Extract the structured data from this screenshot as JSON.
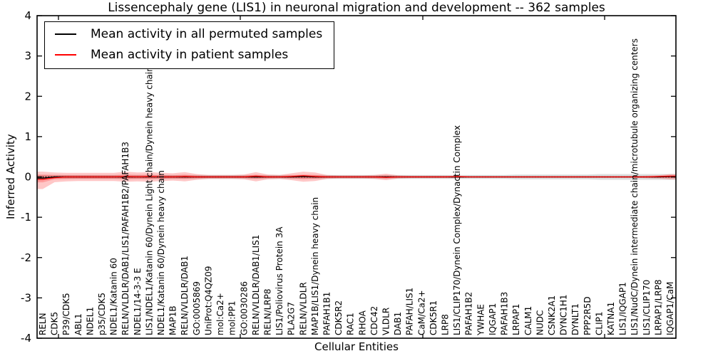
{
  "chart_data": {
    "type": "line",
    "title": "Lissencephaly gene (LIS1) in neuronal migration and development -- 362 samples",
    "xlabel": "Cellular Entities",
    "ylabel": "Inferred Activity",
    "ylim": [
      -4,
      4
    ],
    "yticks": [
      -4,
      -3,
      -2,
      -1,
      0,
      1,
      2,
      3,
      4
    ],
    "grid": false,
    "legend_position": "upper left",
    "zero_line_style": "dotted",
    "categories": [
      "RELN",
      "CDK5",
      "P39/CDK5",
      "ABL1",
      "NDEL1",
      "p35/CDK5",
      "NDEL1/Katanin 60",
      "RELN/VLDLR/DAB1/LIS1/PAFAH1B2/PAFAH1B3",
      "NDEL1/14-3-3 E",
      "LIS1/NDEL1/Katanin 60/Dynein Light chain/Dynein heavy chain",
      "NDEL1/Katanin 60/Dynein heavy chain",
      "MAP1B",
      "RELN/VLDLR/DAB1",
      "GO:0005869",
      "UniProt:Q4QZ09",
      "mol:Ca2+",
      "mol:PP1",
      "GO:0030286",
      "RELN/VLDLR/DAB1/LIS1",
      "RELN/LRP8",
      "LIS1/Poliovirus Protein 3A",
      "PLA2G7",
      "RELN/VLDLR",
      "MAP1B/LIS1/Dynein heavy chain",
      "PAFAH1B1",
      "CDK5R2",
      "RAC1",
      "RHOA",
      "CDC42",
      "VLDLR",
      "DAB1",
      "PAFAH/LIS1",
      "CaM/Ca2+",
      "CDK5R1",
      "LRP8",
      "LIS1/CLIP170/Dynein Complex/Dynactin Complex",
      "PAFAH1B2",
      "YWHAE",
      "IQGAP1",
      "PAFAH1B3",
      "LRPAP1",
      "CALM1",
      "NUDC",
      "CSNK2A1",
      "DYNC1H1",
      "DYNLT1",
      "PPP2R5D",
      "CLIP1",
      "KATNA1",
      "LIS1/IQGAP1",
      "LIS1/NudC/Dynein intermediate chain/microtubule organizing centers",
      "LIS1/CLIP170",
      "LRPAP1/LRP8",
      "IQGAP1/CaM"
    ],
    "series": [
      {
        "name": "Mean activity in all permuted samples",
        "color": "#000000",
        "band_color": "rgba(0,0,0,0.13)",
        "values": [
          -0.03,
          0,
          0,
          0,
          0,
          0,
          0,
          0,
          0,
          0,
          0,
          0,
          0,
          0,
          0,
          0,
          0,
          0,
          0,
          0,
          0,
          0,
          0.01,
          0,
          0,
          0,
          0,
          0,
          0,
          0,
          0,
          0,
          0,
          0,
          0,
          0,
          0,
          0,
          0,
          0,
          0,
          0,
          0,
          0,
          0,
          0,
          0,
          0,
          0,
          0,
          0,
          0,
          0,
          0.01
        ],
        "band_upper": [
          0.05,
          0.05,
          0.05,
          0.05,
          0.05,
          0.05,
          0.05,
          0.05,
          0.05,
          0.05,
          0.05,
          0.05,
          0.05,
          0.05,
          0.05,
          0.05,
          0.05,
          0.05,
          0.05,
          0.05,
          0.05,
          0.05,
          0.05,
          0.05,
          0.05,
          0.05,
          0.05,
          0.05,
          0.05,
          0.05,
          0.05,
          0.05,
          0.05,
          0.05,
          0.05,
          0.05,
          0.05,
          0.05,
          0.05,
          0.05,
          0.06,
          0.06,
          0.06,
          0.06,
          0.06,
          0.06,
          0.06,
          0.07,
          0.07,
          0.07,
          0.07,
          0.07,
          0.07,
          0.07
        ],
        "band_lower": [
          -0.05,
          -0.05,
          -0.05,
          -0.05,
          -0.05,
          -0.05,
          -0.05,
          -0.05,
          -0.05,
          -0.05,
          -0.05,
          -0.05,
          -0.05,
          -0.05,
          -0.05,
          -0.05,
          -0.05,
          -0.05,
          -0.05,
          -0.05,
          -0.05,
          -0.05,
          -0.05,
          -0.05,
          -0.05,
          -0.05,
          -0.05,
          -0.05,
          -0.05,
          -0.05,
          -0.05,
          -0.05,
          -0.05,
          -0.05,
          -0.05,
          -0.05,
          -0.05,
          -0.05,
          -0.05,
          -0.05,
          -0.06,
          -0.06,
          -0.06,
          -0.06,
          -0.06,
          -0.06,
          -0.06,
          -0.07,
          -0.07,
          -0.07,
          -0.07,
          -0.07,
          -0.07,
          -0.07
        ]
      },
      {
        "name": "Mean activity in patient samples",
        "color": "#ff0000",
        "band_color": "rgba(255,0,0,0.22)",
        "values": [
          -0.06,
          -0.02,
          0,
          0,
          0,
          0,
          0,
          0.01,
          0,
          0.01,
          0,
          0,
          0.01,
          0,
          0,
          0,
          0,
          0,
          0.02,
          0,
          0,
          0.01,
          0.03,
          0.01,
          0,
          0,
          0,
          0,
          0,
          -0.01,
          0,
          0,
          0,
          0,
          0,
          0.01,
          0,
          0,
          0,
          0,
          0,
          0,
          0,
          0,
          0,
          0,
          0,
          0,
          0,
          0,
          0,
          0,
          0.01,
          0.02
        ],
        "band_upper": [
          0.13,
          0.11,
          0.1,
          0.1,
          0.1,
          0.1,
          0.1,
          0.13,
          0.11,
          0.12,
          0.1,
          0.09,
          0.12,
          0.07,
          0.05,
          0.05,
          0.05,
          0.06,
          0.12,
          0.06,
          0.05,
          0.09,
          0.13,
          0.11,
          0.05,
          0.04,
          0.04,
          0.04,
          0.05,
          0.08,
          0.04,
          0.03,
          0.03,
          0.03,
          0.03,
          0.03,
          0.02,
          0.02,
          0.02,
          0.02,
          0.02,
          0.02,
          0.02,
          0.02,
          0.02,
          0.02,
          0.02,
          0.02,
          0.02,
          0.02,
          0.02,
          0.03,
          0.04,
          0.07
        ],
        "band_lower": [
          -0.3,
          -0.13,
          -0.11,
          -0.1,
          -0.1,
          -0.1,
          -0.1,
          -0.12,
          -0.11,
          -0.12,
          -0.1,
          -0.09,
          -0.11,
          -0.07,
          -0.05,
          -0.05,
          -0.05,
          -0.06,
          -0.11,
          -0.06,
          -0.05,
          -0.08,
          -0.12,
          -0.1,
          -0.05,
          -0.04,
          -0.04,
          -0.04,
          -0.05,
          -0.08,
          -0.04,
          -0.03,
          -0.03,
          -0.03,
          -0.03,
          -0.03,
          -0.02,
          -0.02,
          -0.02,
          -0.02,
          -0.02,
          -0.02,
          -0.02,
          -0.02,
          -0.02,
          -0.02,
          -0.02,
          -0.02,
          -0.02,
          -0.02,
          -0.02,
          -0.03,
          -0.04,
          -0.06
        ]
      }
    ]
  }
}
